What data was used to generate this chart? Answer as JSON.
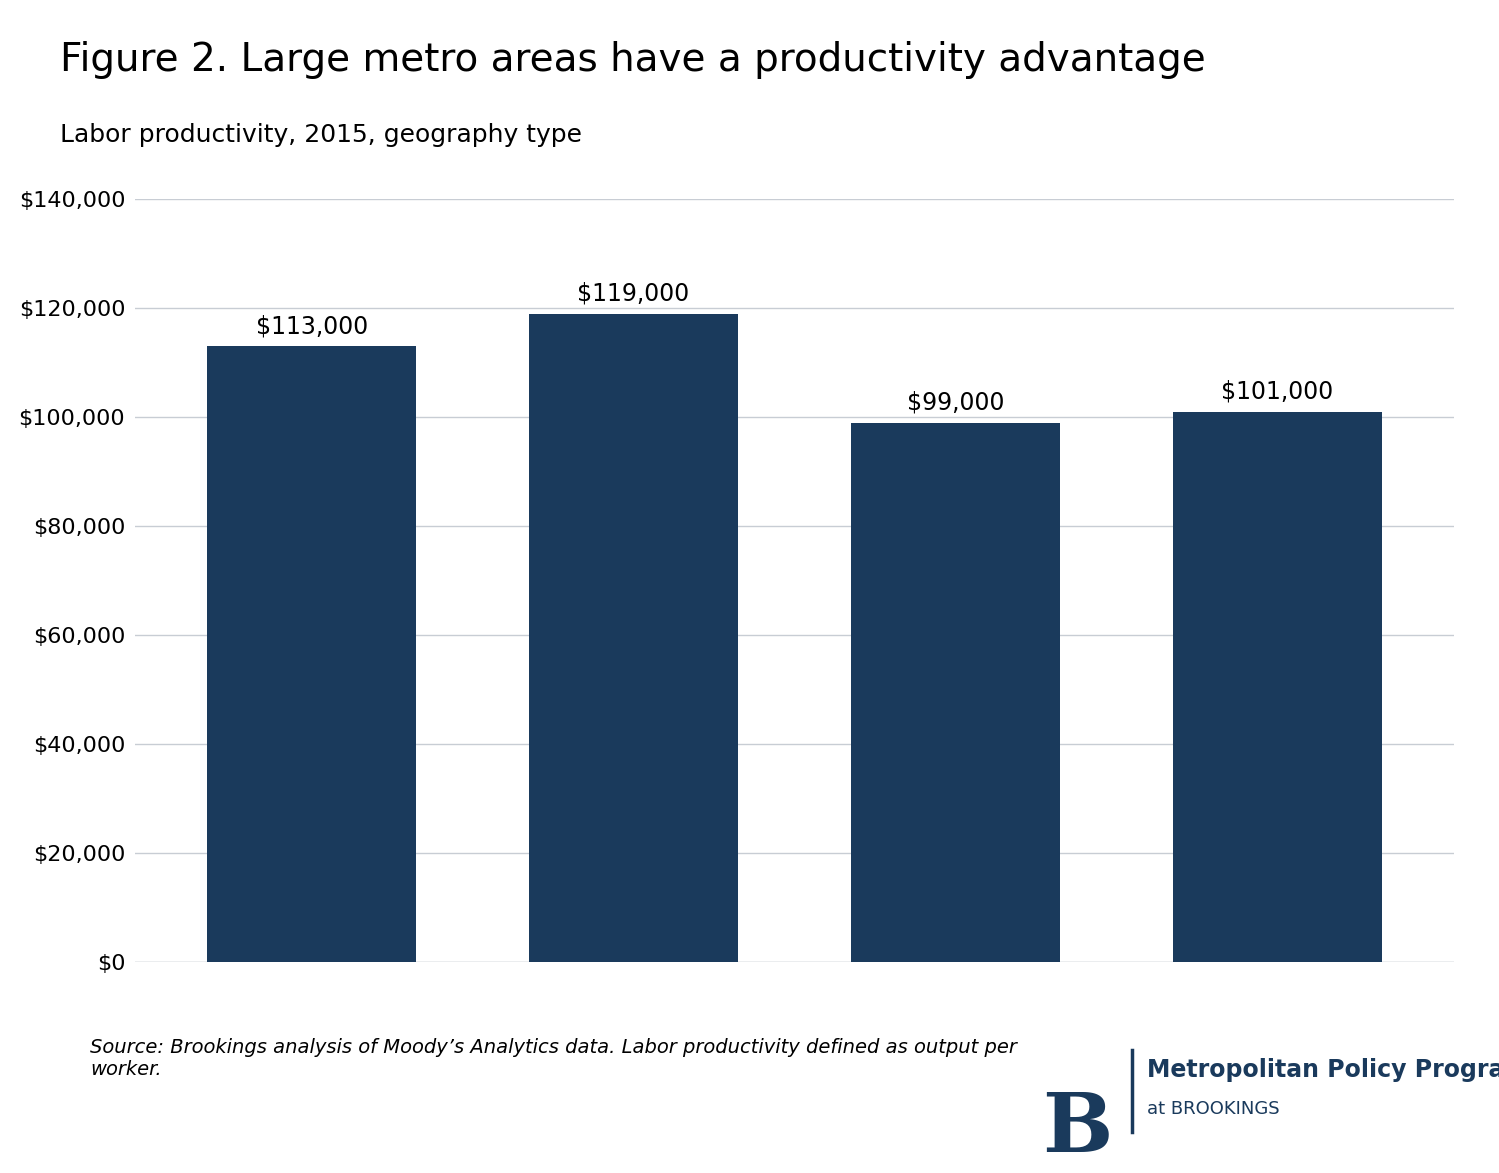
{
  "title": "Figure 2. Large metro areas have a productivity advantage",
  "subtitle": "Labor productivity, 2015, geography type",
  "categories": [
    "",
    "",
    "",
    ""
  ],
  "values": [
    113000,
    119000,
    99000,
    101000
  ],
  "bar_labels": [
    "$113,000",
    "$119,000",
    "$99,000",
    "$101,000"
  ],
  "bar_color": "#1a3a5c",
  "background_color": "#ffffff",
  "plot_background_color": "#ffffff",
  "grid_color": "#c8cdd4",
  "ylim": [
    0,
    140000
  ],
  "yticks": [
    0,
    20000,
    40000,
    60000,
    80000,
    100000,
    120000,
    140000
  ],
  "ytick_labels": [
    "$0",
    "$20,000",
    "$40,000",
    "$60,000",
    "$80,000",
    "$100,000",
    "$120,000",
    "$140,000"
  ],
  "title_fontsize": 28,
  "subtitle_fontsize": 18,
  "source_text": "Source: Brookings analysis of Moody’s Analytics data. Labor productivity defined as output per\nworker.",
  "source_fontsize": 14,
  "bar_label_fontsize": 17,
  "ytick_fontsize": 16,
  "logo_text_line1": "Metropolitan Policy Program",
  "logo_text_line2": "at BROOKINGS",
  "logo_color": "#1a3a5c"
}
